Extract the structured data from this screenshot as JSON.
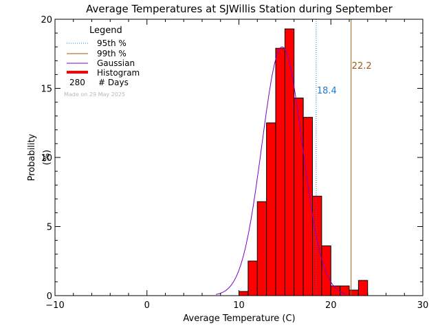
{
  "chart_data": {
    "type": "bar",
    "title": "Average Temperatures at SJWillis Station during September",
    "xlabel": "Average Temperature (C)",
    "ylabel": "Probability\n(%)",
    "xlim": [
      -10,
      30
    ],
    "ylim": [
      0,
      20
    ],
    "xticks": [
      -10,
      0,
      10,
      20,
      30
    ],
    "yticks": [
      0,
      5,
      10,
      15,
      20
    ],
    "grid": false,
    "legend": {
      "title": "Legend",
      "position": "top-left",
      "entries": [
        {
          "label": "95th %",
          "style": "dotted",
          "color": "#1f78d1"
        },
        {
          "label": "99th %",
          "style": "solid",
          "color": "#9b5a1a"
        },
        {
          "label": "Gaussian",
          "style": "solid",
          "color": "#7a00cc"
        },
        {
          "label": "Histogram",
          "style": "thick",
          "color": "#ff0000"
        }
      ],
      "count_value": "280",
      "count_label": "# Days",
      "made_on": "Made on 29 May 2025"
    },
    "histogram": {
      "bin_width": 1,
      "bins": [
        {
          "start": 10,
          "value": 0.3
        },
        {
          "start": 11,
          "value": 2.5
        },
        {
          "start": 12,
          "value": 6.8
        },
        {
          "start": 13,
          "value": 12.5
        },
        {
          "start": 14,
          "value": 17.9
        },
        {
          "start": 15,
          "value": 19.3
        },
        {
          "start": 16,
          "value": 14.3
        },
        {
          "start": 17,
          "value": 12.9
        },
        {
          "start": 18,
          "value": 7.2
        },
        {
          "start": 19,
          "value": 3.6
        },
        {
          "start": 20,
          "value": 0.7
        },
        {
          "start": 21,
          "value": 0.7
        },
        {
          "start": 22,
          "value": 0.4
        },
        {
          "start": 23,
          "value": 1.1
        }
      ]
    },
    "gaussian": {
      "mean": 14.7,
      "sigma": 2.2,
      "peak": 18.0
    },
    "percentiles": [
      {
        "name": "95th",
        "x": 18.4,
        "label": "18.4",
        "color": "#1f78d1",
        "style": "dotted"
      },
      {
        "name": "99th",
        "x": 22.2,
        "label": "22.2",
        "color": "#9b5a1a",
        "style": "solid"
      }
    ]
  }
}
